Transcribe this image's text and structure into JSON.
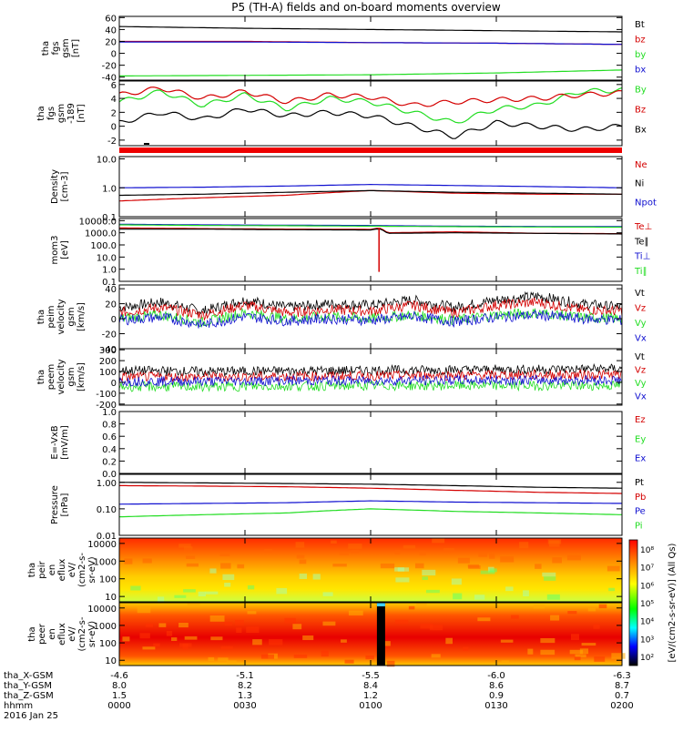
{
  "page": {
    "title": "P5 (TH-A) fields and on-board moments overview"
  },
  "colors": {
    "black": "#000000",
    "red": "#d40000",
    "green": "#22dd22",
    "blue": "#1010d0"
  },
  "chart_data": [
    {
      "id": "fgs_gsm",
      "type": "line",
      "ylabel_lines": [
        "tha",
        "fgs",
        "gsm",
        "[nT]"
      ],
      "ylim": [
        -45,
        62
      ],
      "yticks": [
        60,
        40,
        20,
        0,
        -20,
        -40
      ],
      "legend_placement": "right",
      "x": [
        0,
        30,
        60,
        90,
        120
      ],
      "series": [
        {
          "name": "Bt",
          "color": "#000000",
          "values": [
            45,
            42,
            40,
            38,
            36
          ]
        },
        {
          "name": "bz",
          "color": "#d40000",
          "values": [
            20,
            20,
            18,
            17,
            15
          ]
        },
        {
          "name": "by",
          "color": "#22dd22",
          "values": [
            -38,
            -37,
            -36,
            -33,
            -28
          ]
        },
        {
          "name": "bx",
          "color": "#1010d0",
          "values": [
            19,
            19,
            18,
            17,
            15
          ]
        }
      ]
    },
    {
      "id": "fgs_gsm_zoom",
      "type": "line",
      "ylabel_lines": [
        "tha",
        "fgs",
        "gsm",
        "-189",
        "[nT]"
      ],
      "ylim": [
        -2.8,
        6.5
      ],
      "yticks": [
        6,
        4,
        2,
        0,
        -2
      ],
      "legend_placement": "right",
      "x": [
        0,
        10,
        20,
        30,
        40,
        50,
        60,
        70,
        80,
        90,
        100,
        110,
        120
      ],
      "series": [
        {
          "name": "By",
          "color": "#22dd22",
          "values": [
            3.5,
            5.0,
            3.0,
            4.5,
            2.5,
            4.0,
            3.5,
            2.0,
            0.5,
            2.5,
            3.0,
            5.0,
            5.2
          ]
        },
        {
          "name": "Bz",
          "color": "#d40000",
          "values": [
            4.5,
            5.5,
            4.0,
            5.0,
            3.5,
            4.5,
            4.2,
            3.0,
            3.5,
            3.8,
            4.0,
            4.5,
            4.8
          ]
        },
        {
          "name": "Bx",
          "color": "#000000",
          "values": [
            0.5,
            2.0,
            1.0,
            2.5,
            1.5,
            2.0,
            1.5,
            0.0,
            -1.5,
            0.5,
            0.0,
            -0.5,
            0.0
          ]
        }
      ]
    },
    {
      "id": "density",
      "type": "line",
      "ylabel_lines": [
        "Density",
        "[cm-3]"
      ],
      "log": true,
      "ylim": [
        0.1,
        12
      ],
      "yticks": [
        10.0,
        1.0,
        0.1
      ],
      "ytick_labels": [
        "10.0",
        "1.0",
        "0.1"
      ],
      "legend_placement": "right",
      "x": [
        0,
        20,
        40,
        60,
        80,
        100,
        120
      ],
      "series": [
        {
          "name": "Ne",
          "color": "#d40000",
          "values": [
            0.35,
            0.45,
            0.55,
            0.8,
            0.65,
            0.6,
            0.6
          ]
        },
        {
          "name": "Ni",
          "color": "#000000",
          "values": [
            0.55,
            0.6,
            0.7,
            0.8,
            0.7,
            0.65,
            0.6
          ]
        },
        {
          "name": "Npot",
          "color": "#1010d0",
          "values": [
            1.0,
            1.05,
            1.15,
            1.3,
            1.2,
            1.1,
            1.0
          ]
        }
      ]
    },
    {
      "id": "temperature",
      "type": "line",
      "ylabel_lines": [
        "mom3",
        "[eV]"
      ],
      "log": true,
      "ylim": [
        0.1,
        15000
      ],
      "yticks": [
        10000,
        1000,
        100,
        10,
        1,
        0.1
      ],
      "ytick_labels": [
        "10000.0",
        "1000.0",
        "100.0",
        "10.0",
        "1.0",
        "0.1"
      ],
      "legend_placement": "right",
      "x": [
        0,
        20,
        40,
        60,
        62,
        64,
        80,
        100,
        120
      ],
      "series": [
        {
          "name": "Te⊥",
          "color": "#d40000",
          "values": [
            2500,
            2200,
            2000,
            1900,
            2500,
            1000,
            1200,
            900,
            850
          ]
        },
        {
          "name": "Te∥",
          "color": "#000000",
          "values": [
            2000,
            2000,
            1800,
            1700,
            2200,
            900,
            1000,
            900,
            800
          ]
        },
        {
          "name": "Ti⊥",
          "color": "#1010d0",
          "values": [
            5000,
            4500,
            4200,
            4000,
            4000,
            3800,
            3500,
            3300,
            3200
          ]
        },
        {
          "name": "Ti∥",
          "color": "#22dd22",
          "values": [
            4500,
            4000,
            3800,
            3500,
            3500,
            3400,
            3200,
            3000,
            2900
          ]
        }
      ]
    },
    {
      "id": "peim_velocity",
      "type": "line",
      "ylabel_lines": [
        "tha",
        "peim",
        "velocity",
        "gsm",
        "[km/s]"
      ],
      "ylim": [
        -40,
        45
      ],
      "yticks": [
        40,
        20,
        0,
        -20,
        -40
      ],
      "legend_placement": "right",
      "x": [
        0,
        10,
        20,
        30,
        40,
        50,
        60,
        70,
        80,
        90,
        100,
        110,
        120
      ],
      "series": [
        {
          "name": "Vt",
          "color": "#000000",
          "values": [
            15,
            22,
            10,
            25,
            15,
            20,
            18,
            25,
            15,
            25,
            30,
            20,
            15
          ]
        },
        {
          "name": "Vz",
          "color": "#d40000",
          "values": [
            8,
            15,
            5,
            18,
            8,
            12,
            10,
            18,
            8,
            18,
            22,
            12,
            10
          ]
        },
        {
          "name": "Vy",
          "color": "#22dd22",
          "values": [
            0,
            5,
            -5,
            8,
            0,
            3,
            0,
            5,
            -2,
            5,
            8,
            2,
            0
          ]
        },
        {
          "name": "Vx",
          "color": "#1010d0",
          "values": [
            -2,
            2,
            -8,
            3,
            -3,
            0,
            -2,
            3,
            -4,
            2,
            5,
            0,
            -2
          ]
        }
      ]
    },
    {
      "id": "peem_velocity",
      "type": "line",
      "ylabel_lines": [
        "tha",
        "peem",
        "velocity",
        "gsm",
        "[km/s]"
      ],
      "ylim": [
        -210,
        310
      ],
      "yticks": [
        300,
        200,
        100,
        0,
        -100,
        -200
      ],
      "legend_placement": "right",
      "x": [
        0,
        20,
        40,
        60,
        80,
        100,
        120
      ],
      "series": [
        {
          "name": "Vt",
          "color": "#000000",
          "values": [
            110,
            100,
            105,
            110,
            115,
            120,
            125
          ]
        },
        {
          "name": "Vz",
          "color": "#d40000",
          "values": [
            50,
            50,
            55,
            60,
            65,
            70,
            70
          ]
        },
        {
          "name": "Vy",
          "color": "#22dd22",
          "values": [
            -40,
            -40,
            -35,
            -30,
            -30,
            -30,
            -30
          ]
        },
        {
          "name": "Vx",
          "color": "#1010d0",
          "values": [
            10,
            10,
            15,
            15,
            20,
            20,
            20
          ]
        }
      ]
    },
    {
      "id": "efield",
      "type": "line",
      "ylabel_lines": [
        "E=-VxB",
        "[mV/m]"
      ],
      "ylim": [
        0.0,
        1.0
      ],
      "yticks": [
        1.0,
        0.8,
        0.6,
        0.4,
        0.2,
        0.0
      ],
      "ytick_labels": [
        "1.0",
        "0.8",
        "0.6",
        "0.4",
        "0.2",
        "0.0"
      ],
      "legend_placement": "right",
      "series": [
        {
          "name": "Ez",
          "color": "#d40000"
        },
        {
          "name": "Ey",
          "color": "#22dd22"
        },
        {
          "name": "Ex",
          "color": "#1010d0"
        }
      ]
    },
    {
      "id": "pressure",
      "type": "line",
      "ylabel_lines": [
        "Pressure",
        "[nPa]"
      ],
      "log": true,
      "ylim": [
        0.01,
        2
      ],
      "yticks": [
        1.0,
        0.1,
        0.01
      ],
      "ytick_labels": [
        "1.00",
        "0.10",
        "0.01"
      ],
      "legend_placement": "right",
      "x": [
        0,
        20,
        40,
        60,
        80,
        100,
        120
      ],
      "series": [
        {
          "name": "Pt",
          "color": "#000000",
          "values": [
            1.0,
            0.95,
            0.9,
            0.85,
            0.75,
            0.65,
            0.6
          ]
        },
        {
          "name": "Pb",
          "color": "#d40000",
          "values": [
            0.75,
            0.72,
            0.68,
            0.6,
            0.5,
            0.42,
            0.38
          ]
        },
        {
          "name": "Pe",
          "color": "#1010d0",
          "values": [
            0.15,
            0.16,
            0.17,
            0.2,
            0.18,
            0.17,
            0.16
          ]
        },
        {
          "name": "Pi",
          "color": "#22dd22",
          "values": [
            0.05,
            0.06,
            0.07,
            0.1,
            0.08,
            0.07,
            0.06
          ]
        }
      ]
    },
    {
      "id": "peir_eflux",
      "type": "heatmap",
      "ylabel_lines": [
        "tha",
        "peir",
        "en",
        "eflux",
        "eV/",
        "(cm2-s-",
        "sr-eV)"
      ],
      "log": true,
      "ylim": [
        5,
        20000
      ],
      "yticks": [
        10000,
        1000,
        100,
        10
      ],
      "ytick_labels": [
        "10000",
        "1000",
        "100",
        "10"
      ]
    },
    {
      "id": "peer_eflux",
      "type": "heatmap",
      "ylabel_lines": [
        "tha",
        "peer",
        "en",
        "eflux",
        "eV/",
        "(cm2-s-",
        "sr-eV)"
      ],
      "log": true,
      "ylim": [
        5,
        20000
      ],
      "yticks": [
        10000,
        1000,
        100,
        10
      ],
      "ytick_labels": [
        "10000",
        "1000",
        "100",
        "10"
      ]
    }
  ],
  "colorbar": {
    "label": "[eV/(cm2-s-sr-eV)] (All Qs)",
    "tick_labels": [
      "10⁸",
      "10⁷",
      "10⁶",
      "10⁵",
      "10⁴",
      "10³",
      "10²"
    ],
    "stops": [
      "#ff0000",
      "#ff8800",
      "#ffff00",
      "#00ff00",
      "#00ffff",
      "#0000ff",
      "#000000"
    ]
  },
  "x_axis": {
    "rows": [
      {
        "label": "tha_X-GSM",
        "values": [
          "-4.6",
          "-5.1",
          "-5.5",
          "-6.0",
          "-6.3"
        ]
      },
      {
        "label": "tha_Y-GSM",
        "values": [
          "8.0",
          "8.2",
          "8.4",
          "8.6",
          "8.7"
        ]
      },
      {
        "label": "tha_Z-GSM",
        "values": [
          "1.5",
          "1.3",
          "1.2",
          "0.9",
          "0.7"
        ]
      },
      {
        "label": "hhmm",
        "values": [
          "0000",
          "0030",
          "0100",
          "0130",
          "0200"
        ]
      }
    ],
    "date": "2016 Jan 25",
    "tick_minutes": [
      0,
      30,
      60,
      90,
      120
    ],
    "range_minutes": [
      0,
      120
    ]
  }
}
